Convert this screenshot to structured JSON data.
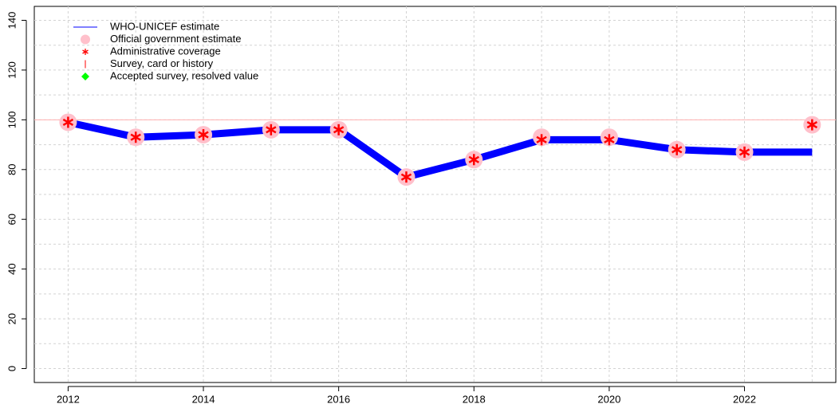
{
  "chart_data": {
    "type": "line",
    "x": [
      2012,
      2013,
      2014,
      2015,
      2016,
      2017,
      2018,
      2019,
      2020,
      2021,
      2022,
      2023
    ],
    "series": [
      {
        "name": "WHO-UNICEF estimate",
        "color": "#0000ff",
        "marker": "line",
        "values": [
          99,
          93,
          94,
          96,
          96,
          77,
          84,
          92,
          92,
          88,
          87,
          87
        ]
      },
      {
        "name": "Official government estimate",
        "color": "#ffc0cb",
        "marker": "circle",
        "values": [
          99,
          93,
          94,
          96,
          96,
          77,
          84,
          93,
          93,
          88,
          87,
          98
        ]
      },
      {
        "name": "Administrative coverage",
        "color": "#ff0000",
        "marker": "asterisk",
        "values": [
          99,
          93,
          94,
          96,
          96,
          77,
          84,
          92,
          92,
          88,
          87,
          98
        ]
      },
      {
        "name": "Survey, card or history",
        "color": "#ff0000",
        "marker": "tick",
        "values": [
          null,
          null,
          null,
          null,
          null,
          null,
          null,
          null,
          null,
          null,
          null,
          null
        ]
      },
      {
        "name": "Accepted survey, resolved value",
        "color": "#00ff00",
        "marker": "diamond",
        "values": [
          null,
          null,
          null,
          null,
          null,
          null,
          null,
          null,
          null,
          null,
          null,
          null
        ]
      }
    ],
    "reference_line": 100,
    "xlim": [
      2011.5,
      2023.35
    ],
    "xticks": [
      2012,
      2014,
      2016,
      2018,
      2020,
      2022
    ],
    "xgrid": [
      2012,
      2013,
      2014,
      2015,
      2016,
      2017,
      2018,
      2019,
      2020,
      2021,
      2022,
      2023
    ],
    "ylim": [
      -5.6,
      145.6
    ],
    "yticks": [
      0,
      20,
      40,
      60,
      80,
      100,
      120,
      140
    ],
    "ygrid": [
      0,
      10,
      20,
      30,
      40,
      50,
      60,
      70,
      80,
      90,
      100,
      110,
      120,
      130,
      140
    ],
    "grid": true
  }
}
